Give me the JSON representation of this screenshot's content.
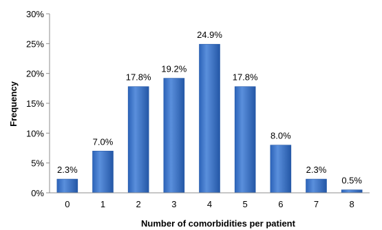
{
  "chart_data": {
    "type": "bar",
    "title": "",
    "xlabel": "Number of comorbidities per patient",
    "ylabel": "Frequency",
    "categories": [
      "0",
      "1",
      "2",
      "3",
      "4",
      "5",
      "6",
      "7",
      "8"
    ],
    "values": [
      2.3,
      7.0,
      17.8,
      19.2,
      24.9,
      17.8,
      8.0,
      2.3,
      0.5
    ],
    "value_labels": [
      "2.3%",
      "7.0%",
      "17.8%",
      "19.2%",
      "24.9%",
      "17.8%",
      "8.0%",
      "2.3%",
      "0.5%"
    ],
    "ylim": [
      0,
      30
    ],
    "yticks": [
      0,
      5,
      10,
      15,
      20,
      25,
      30
    ],
    "ytick_labels": [
      "0%",
      "5%",
      "10%",
      "15%",
      "20%",
      "25%",
      "30%"
    ],
    "grid": false,
    "legend": "none",
    "colors": {
      "bar": "#3a72c4",
      "bar_dark": "#2559a8",
      "bar_light": "#6a9ae0",
      "axis": "#8c8c8c"
    }
  }
}
